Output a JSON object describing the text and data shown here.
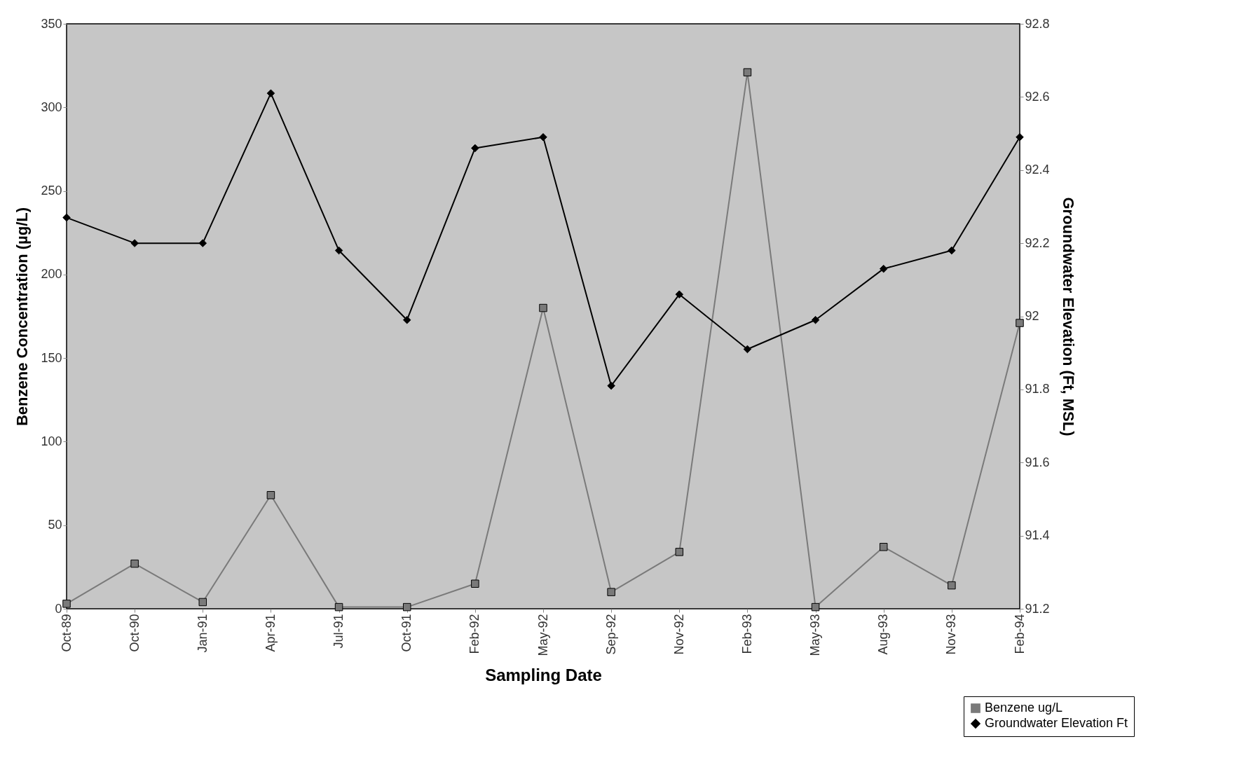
{
  "chart_data": {
    "type": "line",
    "xlabel": "Sampling Date",
    "ylabel": "Benzene Concentration (µg/L)",
    "y2label": "Groundwater Elevation (Ft, MSL)",
    "categories": [
      "Oct-89",
      "Oct-90",
      "Jan-91",
      "Apr-91",
      "Jul-91",
      "Oct-91",
      "Feb-92",
      "May-92",
      "Sep-92",
      "Nov-92",
      "Feb-93",
      "May-93",
      "Aug-93",
      "Nov-93",
      "Feb-94"
    ],
    "series": [
      {
        "name": "Benzene ug/L",
        "color": "#7a7a7a",
        "marker": "square",
        "values": [
          3,
          27,
          4,
          68,
          1,
          1,
          15,
          180,
          10,
          34,
          321,
          1,
          37,
          14,
          171
        ]
      },
      {
        "name": "Groundwater Elevation Ft",
        "color": "#000000",
        "marker": "diamond",
        "axis": "y2",
        "values": [
          92.27,
          92.2,
          92.2,
          92.61,
          92.18,
          91.99,
          92.46,
          92.49,
          91.81,
          92.06,
          91.91,
          91.99,
          92.13,
          92.18,
          92.49
        ]
      }
    ],
    "ylim": [
      0,
      350
    ],
    "yticks": [
      0,
      50,
      100,
      150,
      200,
      250,
      300,
      350
    ],
    "y2lim": [
      91.2,
      92.8
    ],
    "y2ticks": [
      91.2,
      91.4,
      91.6,
      91.8,
      92,
      92.2,
      92.4,
      92.6,
      92.8
    ],
    "legend": "bottom right",
    "grid": false
  }
}
